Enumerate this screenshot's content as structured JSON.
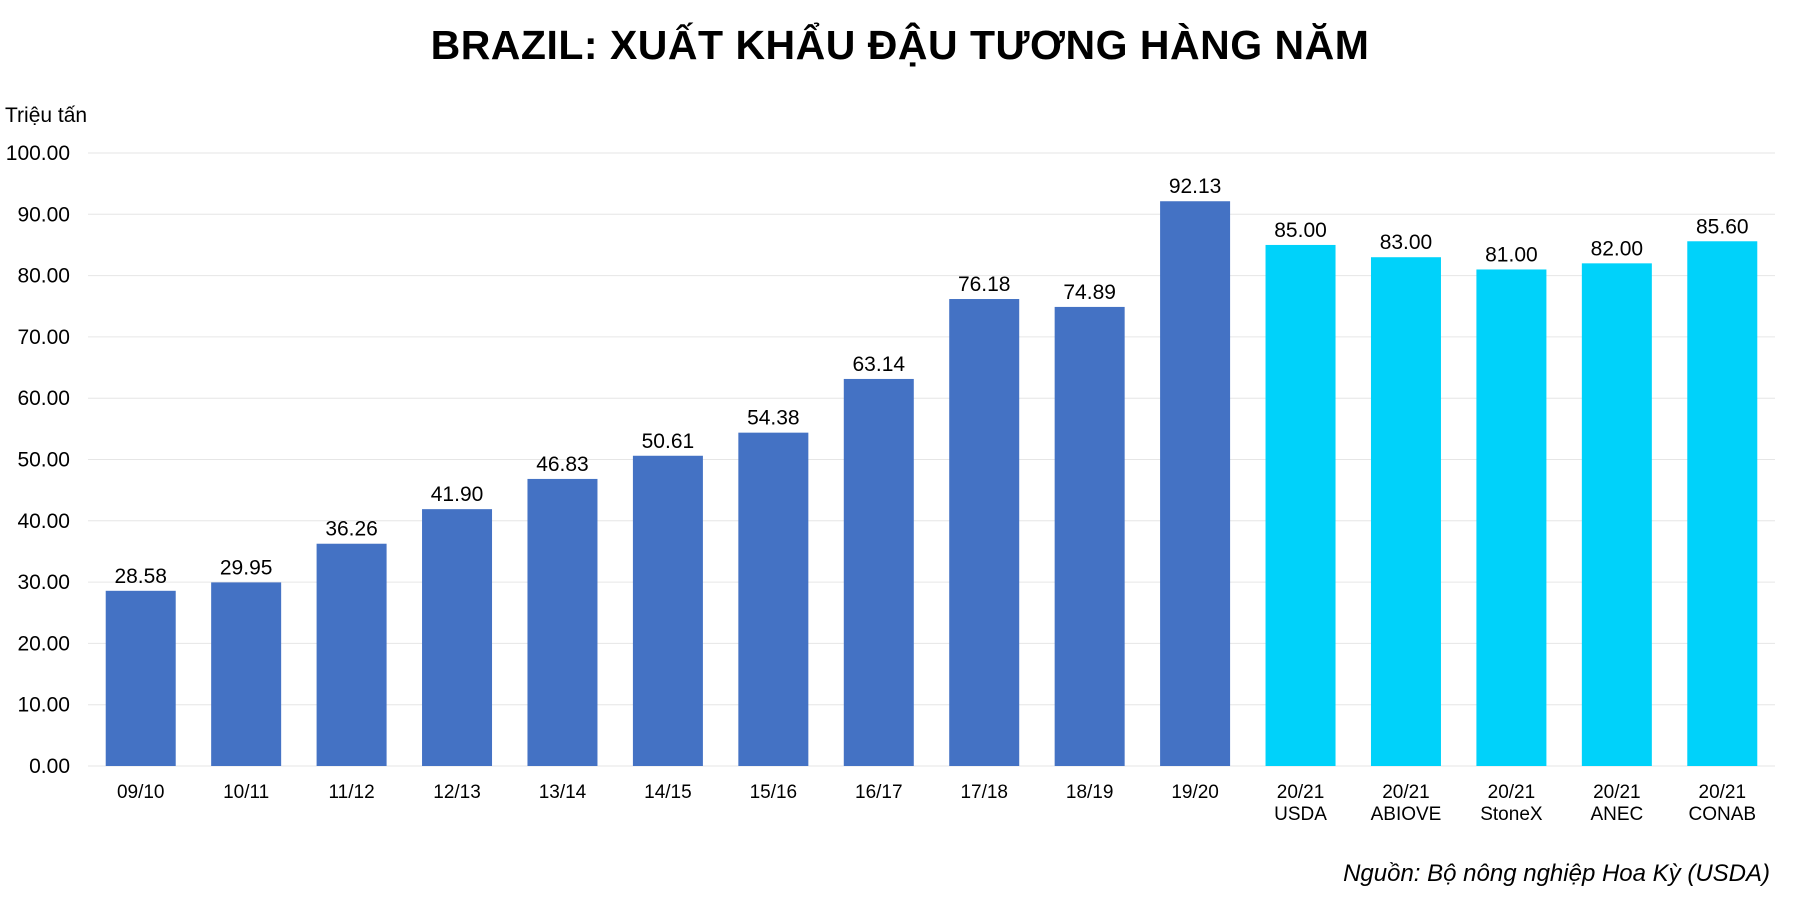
{
  "title": "BRAZIL: XUẤT KHẨU ĐẬU TƯƠNG HÀNG NĂM",
  "unit_label": "Triệu tấn",
  "source": "Nguồn: Bộ nông nghiệp Hoa Kỳ (USDA)",
  "colors": {
    "historical": "#4472C4",
    "forecast": "#00D2FA",
    "grid": "#E6E6E6"
  },
  "chart_data": {
    "type": "bar",
    "title": "BRAZIL: XUẤT KHẨU ĐẬU TƯƠNG HÀNG NĂM",
    "ylabel": "Triệu tấn",
    "xlabel": "",
    "ylim": [
      0,
      100
    ],
    "y_ticks": [
      "0.00",
      "10.00",
      "20.00",
      "30.00",
      "40.00",
      "50.00",
      "60.00",
      "70.00",
      "80.00",
      "90.00",
      "100.00"
    ],
    "grid": true,
    "categories": [
      [
        "09/10"
      ],
      [
        "10/11"
      ],
      [
        "11/12"
      ],
      [
        "12/13"
      ],
      [
        "13/14"
      ],
      [
        "14/15"
      ],
      [
        "15/16"
      ],
      [
        "16/17"
      ],
      [
        "17/18"
      ],
      [
        "18/19"
      ],
      [
        "19/20"
      ],
      [
        "20/21",
        "USDA"
      ],
      [
        "20/21",
        "ABIOVE"
      ],
      [
        "20/21",
        "StoneX"
      ],
      [
        "20/21",
        "ANEC"
      ],
      [
        "20/21",
        "CONAB"
      ]
    ],
    "values": [
      28.58,
      29.95,
      36.26,
      41.9,
      46.83,
      50.61,
      54.38,
      63.14,
      76.18,
      74.89,
      92.13,
      85.0,
      83.0,
      81.0,
      82.0,
      85.6
    ],
    "value_labels": [
      "28.58",
      "29.95",
      "36.26",
      "41.90",
      "46.83",
      "50.61",
      "54.38",
      "63.14",
      "76.18",
      "74.89",
      "92.13",
      "85.00",
      "83.00",
      "81.00",
      "82.00",
      "85.60"
    ],
    "bar_group": [
      "historical",
      "historical",
      "historical",
      "historical",
      "historical",
      "historical",
      "historical",
      "historical",
      "historical",
      "historical",
      "historical",
      "forecast",
      "forecast",
      "forecast",
      "forecast",
      "forecast"
    ]
  }
}
